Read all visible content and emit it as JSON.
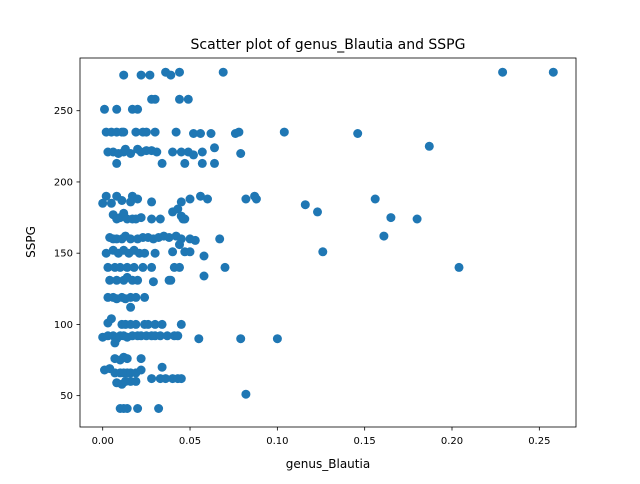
{
  "chart_data": {
    "type": "scatter",
    "title": "Scatter plot of genus_Blautia and SSPG",
    "xlabel": "genus_Blautia",
    "ylabel": "SSPG",
    "xlim": [
      -0.013,
      0.271
    ],
    "ylim": [
      28,
      287
    ],
    "xticks": [
      0.0,
      0.05,
      0.1,
      0.15,
      0.2,
      0.25
    ],
    "xtick_labels": [
      "0.00",
      "0.05",
      "0.10",
      "0.15",
      "0.20",
      "0.25"
    ],
    "yticks": [
      50,
      100,
      150,
      200,
      250
    ],
    "ytick_labels": [
      "50",
      "100",
      "150",
      "200",
      "250"
    ],
    "grid": false,
    "color": "#1f77b4",
    "points": [
      {
        "x": 0.012,
        "y": 275
      },
      {
        "x": 0.022,
        "y": 275
      },
      {
        "x": 0.027,
        "y": 275
      },
      {
        "x": 0.036,
        "y": 277
      },
      {
        "x": 0.039,
        "y": 275
      },
      {
        "x": 0.044,
        "y": 277
      },
      {
        "x": 0.069,
        "y": 277
      },
      {
        "x": 0.229,
        "y": 277
      },
      {
        "x": 0.258,
        "y": 277
      },
      {
        "x": 0.028,
        "y": 258
      },
      {
        "x": 0.03,
        "y": 258
      },
      {
        "x": 0.044,
        "y": 258
      },
      {
        "x": 0.049,
        "y": 258
      },
      {
        "x": 0.001,
        "y": 251
      },
      {
        "x": 0.008,
        "y": 251
      },
      {
        "x": 0.017,
        "y": 251
      },
      {
        "x": 0.02,
        "y": 251
      },
      {
        "x": 0.002,
        "y": 235
      },
      {
        "x": 0.005,
        "y": 235
      },
      {
        "x": 0.008,
        "y": 235
      },
      {
        "x": 0.011,
        "y": 235
      },
      {
        "x": 0.012,
        "y": 235
      },
      {
        "x": 0.019,
        "y": 235
      },
      {
        "x": 0.023,
        "y": 235
      },
      {
        "x": 0.025,
        "y": 235
      },
      {
        "x": 0.03,
        "y": 235
      },
      {
        "x": 0.042,
        "y": 235
      },
      {
        "x": 0.052,
        "y": 234
      },
      {
        "x": 0.056,
        "y": 234
      },
      {
        "x": 0.062,
        "y": 234
      },
      {
        "x": 0.076,
        "y": 234
      },
      {
        "x": 0.078,
        "y": 235
      },
      {
        "x": 0.104,
        "y": 235
      },
      {
        "x": 0.146,
        "y": 234
      },
      {
        "x": 0.003,
        "y": 221
      },
      {
        "x": 0.006,
        "y": 221
      },
      {
        "x": 0.009,
        "y": 220
      },
      {
        "x": 0.012,
        "y": 221
      },
      {
        "x": 0.013,
        "y": 223
      },
      {
        "x": 0.016,
        "y": 220
      },
      {
        "x": 0.02,
        "y": 223
      },
      {
        "x": 0.022,
        "y": 221
      },
      {
        "x": 0.025,
        "y": 222
      },
      {
        "x": 0.028,
        "y": 222
      },
      {
        "x": 0.031,
        "y": 221
      },
      {
        "x": 0.04,
        "y": 221
      },
      {
        "x": 0.045,
        "y": 221
      },
      {
        "x": 0.049,
        "y": 221
      },
      {
        "x": 0.052,
        "y": 219
      },
      {
        "x": 0.057,
        "y": 221
      },
      {
        "x": 0.064,
        "y": 224
      },
      {
        "x": 0.079,
        "y": 220
      },
      {
        "x": 0.187,
        "y": 225
      },
      {
        "x": 0.008,
        "y": 213
      },
      {
        "x": 0.034,
        "y": 213
      },
      {
        "x": 0.047,
        "y": 213
      },
      {
        "x": 0.057,
        "y": 213
      },
      {
        "x": 0.064,
        "y": 213
      },
      {
        "x": 0.002,
        "y": 190
      },
      {
        "x": 0.005,
        "y": 185
      },
      {
        "x": 0.008,
        "y": 190
      },
      {
        "x": 0.011,
        "y": 187
      },
      {
        "x": 0.016,
        "y": 186
      },
      {
        "x": 0.017,
        "y": 190
      },
      {
        "x": 0.02,
        "y": 188
      },
      {
        "x": 0.028,
        "y": 186
      },
      {
        "x": 0.043,
        "y": 181
      },
      {
        "x": 0.045,
        "y": 186
      },
      {
        "x": 0.05,
        "y": 188
      },
      {
        "x": 0.056,
        "y": 190
      },
      {
        "x": 0.06,
        "y": 188
      },
      {
        "x": 0.082,
        "y": 188
      },
      {
        "x": 0.087,
        "y": 190
      },
      {
        "x": 0.088,
        "y": 188
      },
      {
        "x": 0.116,
        "y": 184
      },
      {
        "x": 0.123,
        "y": 179
      },
      {
        "x": 0.156,
        "y": 188
      },
      {
        "x": 0.0,
        "y": 185
      },
      {
        "x": 0.006,
        "y": 177
      },
      {
        "x": 0.008,
        "y": 174
      },
      {
        "x": 0.01,
        "y": 175
      },
      {
        "x": 0.012,
        "y": 178
      },
      {
        "x": 0.014,
        "y": 174
      },
      {
        "x": 0.017,
        "y": 174
      },
      {
        "x": 0.019,
        "y": 174
      },
      {
        "x": 0.022,
        "y": 175
      },
      {
        "x": 0.028,
        "y": 174
      },
      {
        "x": 0.033,
        "y": 174
      },
      {
        "x": 0.04,
        "y": 179
      },
      {
        "x": 0.045,
        "y": 176
      },
      {
        "x": 0.046,
        "y": 174
      },
      {
        "x": 0.047,
        "y": 174
      },
      {
        "x": 0.165,
        "y": 175
      },
      {
        "x": 0.18,
        "y": 174
      },
      {
        "x": 0.004,
        "y": 161
      },
      {
        "x": 0.006,
        "y": 160
      },
      {
        "x": 0.008,
        "y": 160
      },
      {
        "x": 0.011,
        "y": 160
      },
      {
        "x": 0.013,
        "y": 162
      },
      {
        "x": 0.016,
        "y": 160
      },
      {
        "x": 0.02,
        "y": 160
      },
      {
        "x": 0.023,
        "y": 161
      },
      {
        "x": 0.026,
        "y": 161
      },
      {
        "x": 0.029,
        "y": 160
      },
      {
        "x": 0.032,
        "y": 161
      },
      {
        "x": 0.035,
        "y": 162
      },
      {
        "x": 0.038,
        "y": 161
      },
      {
        "x": 0.042,
        "y": 162
      },
      {
        "x": 0.045,
        "y": 160
      },
      {
        "x": 0.05,
        "y": 160
      },
      {
        "x": 0.053,
        "y": 159
      },
      {
        "x": 0.067,
        "y": 160
      },
      {
        "x": 0.161,
        "y": 162
      },
      {
        "x": 0.002,
        "y": 150
      },
      {
        "x": 0.006,
        "y": 152
      },
      {
        "x": 0.009,
        "y": 150
      },
      {
        "x": 0.012,
        "y": 152
      },
      {
        "x": 0.015,
        "y": 150
      },
      {
        "x": 0.018,
        "y": 152
      },
      {
        "x": 0.021,
        "y": 150
      },
      {
        "x": 0.024,
        "y": 150
      },
      {
        "x": 0.03,
        "y": 150
      },
      {
        "x": 0.04,
        "y": 151
      },
      {
        "x": 0.044,
        "y": 156
      },
      {
        "x": 0.047,
        "y": 151
      },
      {
        "x": 0.05,
        "y": 151
      },
      {
        "x": 0.058,
        "y": 148
      },
      {
        "x": 0.126,
        "y": 151
      },
      {
        "x": 0.003,
        "y": 140
      },
      {
        "x": 0.007,
        "y": 140
      },
      {
        "x": 0.01,
        "y": 140
      },
      {
        "x": 0.014,
        "y": 140
      },
      {
        "x": 0.018,
        "y": 140
      },
      {
        "x": 0.023,
        "y": 140
      },
      {
        "x": 0.028,
        "y": 140
      },
      {
        "x": 0.041,
        "y": 140
      },
      {
        "x": 0.044,
        "y": 140
      },
      {
        "x": 0.058,
        "y": 134
      },
      {
        "x": 0.07,
        "y": 140
      },
      {
        "x": 0.204,
        "y": 140
      },
      {
        "x": 0.004,
        "y": 131
      },
      {
        "x": 0.008,
        "y": 131
      },
      {
        "x": 0.012,
        "y": 131
      },
      {
        "x": 0.014,
        "y": 133
      },
      {
        "x": 0.017,
        "y": 131
      },
      {
        "x": 0.02,
        "y": 131
      },
      {
        "x": 0.029,
        "y": 130
      },
      {
        "x": 0.038,
        "y": 131
      },
      {
        "x": 0.039,
        "y": 131
      },
      {
        "x": 0.003,
        "y": 119
      },
      {
        "x": 0.006,
        "y": 119
      },
      {
        "x": 0.008,
        "y": 118
      },
      {
        "x": 0.011,
        "y": 119
      },
      {
        "x": 0.013,
        "y": 118
      },
      {
        "x": 0.016,
        "y": 119
      },
      {
        "x": 0.019,
        "y": 119
      },
      {
        "x": 0.024,
        "y": 119
      },
      {
        "x": 0.016,
        "y": 112
      },
      {
        "x": 0.003,
        "y": 101
      },
      {
        "x": 0.005,
        "y": 104
      },
      {
        "x": 0.011,
        "y": 100
      },
      {
        "x": 0.013,
        "y": 100
      },
      {
        "x": 0.016,
        "y": 100
      },
      {
        "x": 0.019,
        "y": 100
      },
      {
        "x": 0.024,
        "y": 100
      },
      {
        "x": 0.026,
        "y": 100
      },
      {
        "x": 0.03,
        "y": 100
      },
      {
        "x": 0.034,
        "y": 100
      },
      {
        "x": 0.045,
        "y": 100
      },
      {
        "x": 0.0,
        "y": 91
      },
      {
        "x": 0.003,
        "y": 92
      },
      {
        "x": 0.006,
        "y": 92
      },
      {
        "x": 0.008,
        "y": 90
      },
      {
        "x": 0.01,
        "y": 92
      },
      {
        "x": 0.012,
        "y": 92
      },
      {
        "x": 0.014,
        "y": 91
      },
      {
        "x": 0.017,
        "y": 92
      },
      {
        "x": 0.02,
        "y": 92
      },
      {
        "x": 0.022,
        "y": 92
      },
      {
        "x": 0.025,
        "y": 92
      },
      {
        "x": 0.028,
        "y": 92
      },
      {
        "x": 0.03,
        "y": 92
      },
      {
        "x": 0.033,
        "y": 92
      },
      {
        "x": 0.037,
        "y": 92
      },
      {
        "x": 0.041,
        "y": 92
      },
      {
        "x": 0.043,
        "y": 92
      },
      {
        "x": 0.055,
        "y": 90
      },
      {
        "x": 0.079,
        "y": 90
      },
      {
        "x": 0.1,
        "y": 90
      },
      {
        "x": 0.007,
        "y": 87
      },
      {
        "x": 0.007,
        "y": 76
      },
      {
        "x": 0.01,
        "y": 75
      },
      {
        "x": 0.012,
        "y": 77
      },
      {
        "x": 0.014,
        "y": 76
      },
      {
        "x": 0.022,
        "y": 76
      },
      {
        "x": 0.034,
        "y": 70
      },
      {
        "x": 0.001,
        "y": 68
      },
      {
        "x": 0.004,
        "y": 69
      },
      {
        "x": 0.007,
        "y": 66
      },
      {
        "x": 0.01,
        "y": 66
      },
      {
        "x": 0.012,
        "y": 66
      },
      {
        "x": 0.014,
        "y": 66
      },
      {
        "x": 0.016,
        "y": 66
      },
      {
        "x": 0.019,
        "y": 66
      },
      {
        "x": 0.022,
        "y": 68
      },
      {
        "x": 0.008,
        "y": 59
      },
      {
        "x": 0.011,
        "y": 58
      },
      {
        "x": 0.013,
        "y": 60
      },
      {
        "x": 0.016,
        "y": 60
      },
      {
        "x": 0.019,
        "y": 60
      },
      {
        "x": 0.028,
        "y": 62
      },
      {
        "x": 0.033,
        "y": 62
      },
      {
        "x": 0.036,
        "y": 62
      },
      {
        "x": 0.04,
        "y": 62
      },
      {
        "x": 0.043,
        "y": 62
      },
      {
        "x": 0.045,
        "y": 62
      },
      {
        "x": 0.082,
        "y": 51
      },
      {
        "x": 0.01,
        "y": 41
      },
      {
        "x": 0.012,
        "y": 41
      },
      {
        "x": 0.014,
        "y": 41
      },
      {
        "x": 0.02,
        "y": 41
      },
      {
        "x": 0.032,
        "y": 41
      }
    ]
  }
}
